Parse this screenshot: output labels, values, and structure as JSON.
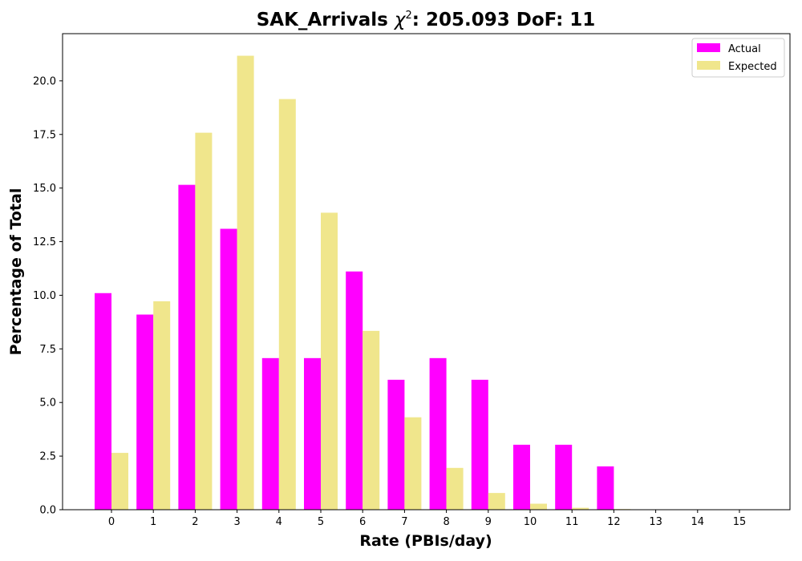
{
  "chart_data": {
    "type": "bar",
    "title_prefix": "SAK_Arrivals ",
    "title_symbol": "χ",
    "title_superscript": "2",
    "title_suffix": ": 205.093 DoF: 11",
    "xlabel": "Rate (PBIs/day)",
    "ylabel": "Percentage of Total",
    "categories": [
      "0",
      "1",
      "2",
      "3",
      "4",
      "5",
      "6",
      "7",
      "8",
      "9",
      "10",
      "11",
      "12",
      "13",
      "14",
      "15"
    ],
    "ylim": [
      0,
      22.2
    ],
    "yticks": [
      "0.0",
      "2.5",
      "5.0",
      "7.5",
      "10.0",
      "12.5",
      "15.0",
      "17.5",
      "20.0"
    ],
    "grid": false,
    "legend_position": "top-right",
    "series": [
      {
        "name": "Actual",
        "color": "#ff00ff",
        "values": [
          10.1,
          9.1,
          15.15,
          13.1,
          7.07,
          7.07,
          11.11,
          6.06,
          7.07,
          6.06,
          3.03,
          3.03,
          2.02,
          0,
          0,
          0
        ]
      },
      {
        "name": "Expected",
        "color": "#f0e68c",
        "values": [
          2.65,
          9.72,
          17.58,
          21.17,
          19.15,
          13.85,
          8.34,
          4.31,
          1.95,
          0.78,
          0.28,
          0.09,
          0.03,
          0.01,
          0,
          0
        ]
      }
    ]
  }
}
